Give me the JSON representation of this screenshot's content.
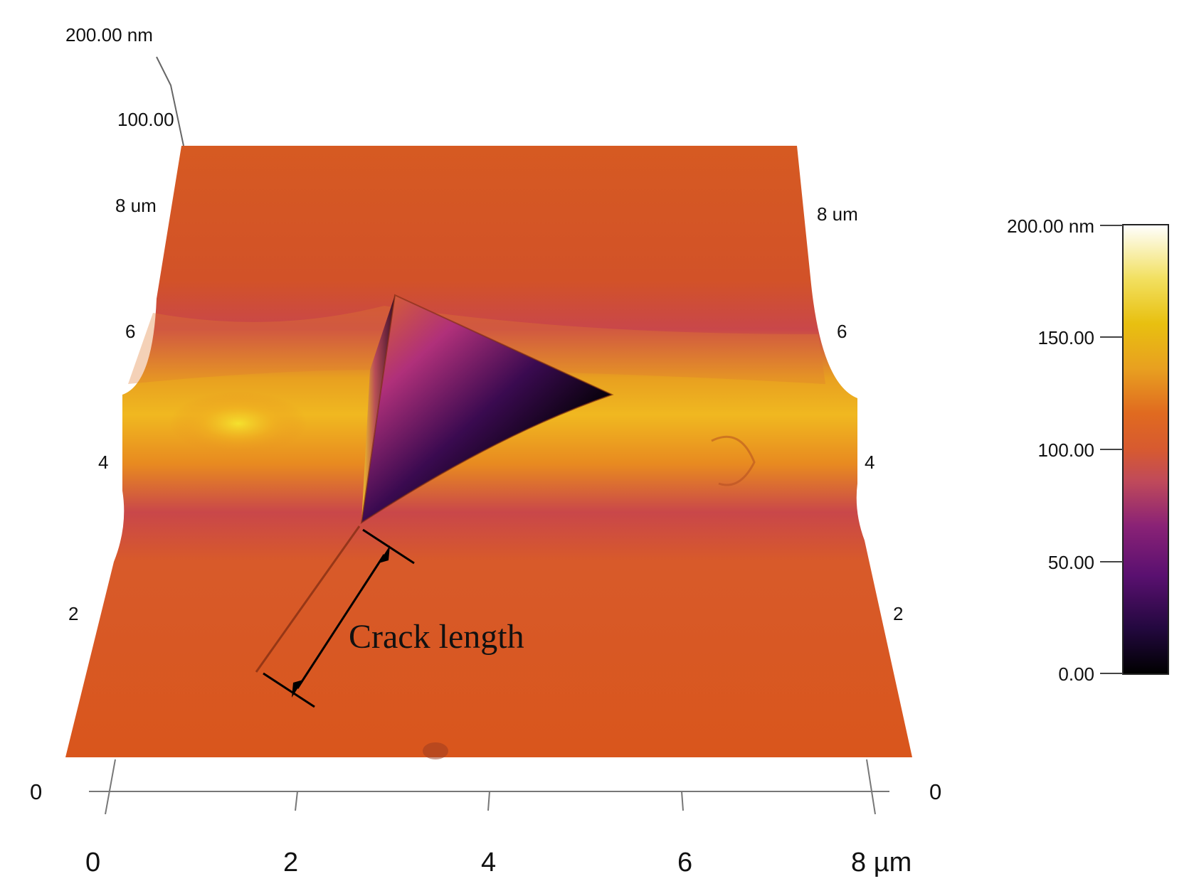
{
  "figure": {
    "z_max_label": "200.00 nm",
    "z_mid_label": "100.00",
    "left_y_ticks": [
      "8 um",
      "6",
      "4",
      "2",
      "0"
    ],
    "right_y_ticks": [
      "8 um",
      "6",
      "4",
      "2",
      "0"
    ],
    "x_ticks": [
      "0",
      "2",
      "4",
      "6",
      "8 µm"
    ],
    "annotation": "Crack length"
  },
  "colorbar": {
    "ticks": [
      "200.00 nm",
      "150.00",
      "100.00",
      "50.00",
      "0.00"
    ],
    "range": [
      0,
      200
    ],
    "unit": "nm",
    "colors": [
      "#000000",
      "#2a0a4a",
      "#7a1a7a",
      "#b83a5a",
      "#d85a30",
      "#e06a20",
      "#e89a20",
      "#f0c820",
      "#f8f080",
      "#ffffff"
    ]
  },
  "surface": {
    "base_color": "#d8571e",
    "pit_color": "#000000"
  }
}
